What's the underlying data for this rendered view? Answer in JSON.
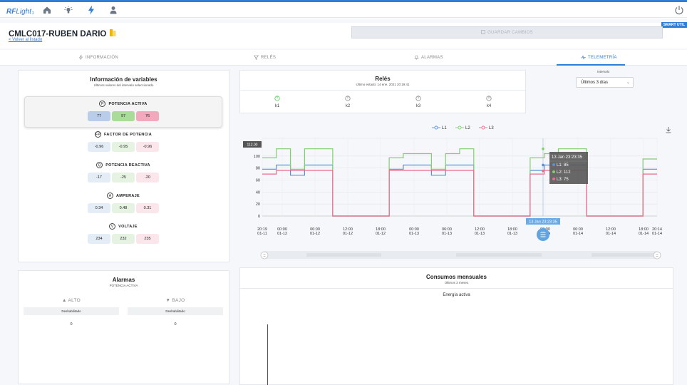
{
  "nav": {
    "logo_rf": "RF",
    "logo_light": "Light",
    "logo_sub": "2",
    "smart_tag": "SMART UTIL"
  },
  "header": {
    "title": "CMLC017-RUBEN DARIO",
    "back_link": "< Volver al listado",
    "save_label": "GUARDAR CAMBIOS"
  },
  "tabs": [
    {
      "label": "INFORMACIÓN",
      "icon": "bolt-outline-icon"
    },
    {
      "label": "RELÉS",
      "icon": "filter-icon"
    },
    {
      "label": "ALARMAS",
      "icon": "bell-icon"
    },
    {
      "label": "TELEMETRÍA",
      "icon": "pulse-icon",
      "active": true
    }
  ],
  "variables": {
    "title": "Información de variables",
    "subtitle": "Últimos valores del intervalo seleccionado",
    "groups": [
      {
        "letter": "P",
        "label": "POTENCIA ACTIVA",
        "values": [
          "77",
          "97",
          "76"
        ]
      },
      {
        "letter": "FP",
        "label": "FACTOR DE POTENCIA",
        "values": [
          "-0.96",
          "-0.95",
          "-0.96"
        ]
      },
      {
        "letter": "Q",
        "label": "POTENCIA REACTIVA",
        "values": [
          "-17",
          "-25",
          "-20"
        ]
      },
      {
        "letter": "A",
        "label": "AMPERAJE",
        "values": [
          "0.34",
          "0.48",
          "0.31"
        ]
      },
      {
        "letter": "V",
        "label": "VOLTAJE",
        "values": [
          "234",
          "232",
          "235"
        ]
      }
    ]
  },
  "alarms": {
    "title": "Alarmas",
    "subtitle": "POTENCIA ACTIVA",
    "high": {
      "label": "ALTO",
      "state": "Deshabilitado",
      "value": "0"
    },
    "low": {
      "label": "BAJO",
      "state": "Deshabilitado",
      "value": "0"
    }
  },
  "relays": {
    "title": "Relés",
    "subtitle": "Último estado: 14 ene. 2021 20:19:41",
    "items": [
      {
        "label": "k1",
        "on": true
      },
      {
        "label": "k2",
        "on": false
      },
      {
        "label": "k3",
        "on": false
      },
      {
        "label": "k4",
        "on": false
      }
    ]
  },
  "interval": {
    "label": "Intervalo",
    "value": "Últimos 3 días"
  },
  "colors": {
    "accent": "#2f7fd6",
    "l1": "#5b8fd8",
    "l2": "#7fd06a",
    "l3": "#ee6a8c"
  },
  "chart_data": {
    "type": "line",
    "legend": [
      "L1",
      "L2",
      "L3"
    ],
    "y_ticks": [
      "0",
      "20",
      "40",
      "60",
      "80",
      "100"
    ],
    "ylim": [
      0,
      120
    ],
    "x_ticks": [
      [
        "20:19",
        "01-11"
      ],
      [
        "00:00",
        "01-12"
      ],
      [
        "06:00",
        "01-12"
      ],
      [
        "12:00",
        "01-12"
      ],
      [
        "18:00",
        "01-12"
      ],
      [
        "00:00",
        "01-13"
      ],
      [
        "06:00",
        "01-13"
      ],
      [
        "12:00",
        "01-13"
      ],
      [
        "18:00",
        "01-13"
      ],
      [
        "00:00",
        "01-14"
      ],
      [
        "06:00",
        "01-14"
      ],
      [
        "12:00",
        "01-14"
      ],
      [
        "18:00",
        "01-14"
      ],
      [
        "20:14",
        "01-14"
      ]
    ],
    "top_label": "112.00",
    "crosshair_label": "13 Jan 23:23:35",
    "tooltip": {
      "title": "13 Jan 23:23:35",
      "rows": [
        {
          "series": "L1",
          "value": "85"
        },
        {
          "series": "L2",
          "value": "112"
        },
        {
          "series": "L3",
          "value": "75"
        }
      ]
    },
    "series": [
      {
        "name": "L1",
        "values": [
          78,
          85,
          68,
          85,
          85,
          0,
          0,
          0,
          0,
          78,
          85,
          85,
          68,
          85,
          85,
          0,
          0,
          0,
          0,
          76,
          85,
          85,
          85,
          0,
          0,
          0,
          0,
          78
        ]
      },
      {
        "name": "L2",
        "values": [
          97,
          112,
          78,
          112,
          112,
          0,
          0,
          0,
          0,
          97,
          104,
          104,
          78,
          104,
          112,
          0,
          0,
          0,
          0,
          97,
          104,
          112,
          112,
          0,
          0,
          0,
          0,
          95
        ]
      },
      {
        "name": "L3",
        "values": [
          70,
          76,
          76,
          76,
          76,
          0,
          0,
          0,
          0,
          76,
          76,
          76,
          76,
          76,
          76,
          0,
          0,
          0,
          0,
          70,
          76,
          76,
          76,
          0,
          0,
          0,
          0,
          70
        ]
      }
    ]
  },
  "consumption": {
    "title": "Consumos mensuales",
    "subtitle": "Últimos 3 meses",
    "chart_label": "Energía activa"
  }
}
